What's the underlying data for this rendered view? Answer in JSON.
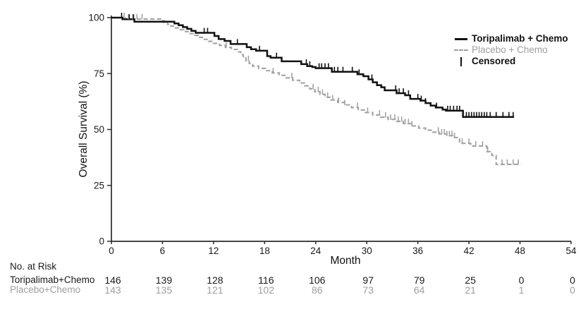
{
  "chart_data": {
    "type": "line",
    "subtype": "kaplan-meier-step",
    "title": "",
    "xlabel": "Month",
    "ylabel": "Overall Survival (%)",
    "xlim": [
      0,
      54
    ],
    "ylim": [
      0,
      100
    ],
    "x_ticks": [
      0,
      6,
      12,
      18,
      24,
      30,
      36,
      42,
      48,
      54
    ],
    "y_ticks": [
      0,
      25,
      50,
      75,
      100
    ],
    "grid": false,
    "legend_position": "top-right",
    "legend": [
      {
        "label": "Toripalimab + Chemo",
        "style": "solid",
        "color": "#111111"
      },
      {
        "label": "Placebo + Chemo",
        "style": "dashed",
        "color": "#a0a0a0"
      },
      {
        "label": "Censored",
        "style": "tick",
        "color": "#111111"
      }
    ],
    "axis_color": "#2b2b2b",
    "series": [
      {
        "name": "Toripalimab + Chemo",
        "color": "#111111",
        "line_style": "solid",
        "end_month": 47.3,
        "points": [
          [
            0,
            100
          ],
          [
            1.3,
            99.3
          ],
          [
            2.7,
            98.2
          ],
          [
            7.4,
            97.4
          ],
          [
            7.9,
            96.6
          ],
          [
            8.4,
            95.8
          ],
          [
            8.9,
            95.0
          ],
          [
            9.4,
            94.1
          ],
          [
            9.9,
            93.2
          ],
          [
            12.1,
            91.8
          ],
          [
            12.6,
            90.4
          ],
          [
            13.3,
            89.6
          ],
          [
            14.0,
            88.2
          ],
          [
            15.9,
            86.8
          ],
          [
            16.4,
            85.9
          ],
          [
            17.0,
            85.2
          ],
          [
            18.3,
            82.8
          ],
          [
            18.7,
            82.1
          ],
          [
            20.0,
            80.5
          ],
          [
            22.3,
            79.2
          ],
          [
            23.0,
            78.3
          ],
          [
            23.6,
            77.9
          ],
          [
            24.0,
            77.4
          ],
          [
            25.9,
            75.8
          ],
          [
            28.9,
            74.7
          ],
          [
            29.6,
            73.8
          ],
          [
            30.2,
            72.4
          ],
          [
            30.7,
            71.1
          ],
          [
            31.2,
            69.8
          ],
          [
            31.7,
            68.9
          ],
          [
            32.1,
            67.5
          ],
          [
            33.5,
            66.2
          ],
          [
            34.5,
            65.3
          ],
          [
            35.1,
            63.7
          ],
          [
            36.3,
            62.9
          ],
          [
            36.9,
            61.8
          ],
          [
            37.5,
            60.7
          ],
          [
            38.1,
            59.8
          ],
          [
            38.9,
            58.9
          ],
          [
            39.3,
            58.4
          ],
          [
            41.3,
            55.6
          ]
        ],
        "censor_months": [
          1.2,
          2.1,
          2.6,
          10.9,
          11.3,
          14.8,
          17.4,
          19.4,
          22.9,
          23.3,
          24.4,
          24.7,
          25.1,
          25.5,
          26.2,
          26.6,
          27.2,
          28.3,
          29.1,
          30.6,
          33.4,
          33.8,
          34.3,
          34.9,
          36.0,
          36.4,
          36.9,
          38.2,
          39.5,
          39.8,
          40.2,
          40.6,
          40.9,
          41.7,
          42.0,
          42.3,
          42.6,
          42.9,
          43.2,
          43.5,
          43.8,
          44.1,
          44.5,
          45.2,
          46.0,
          46.7,
          47.2
        ]
      },
      {
        "name": "Placebo + Chemo",
        "color": "#a3a3a3",
        "line_style": "dashed",
        "end_month": 48.1,
        "points": [
          [
            0,
            100
          ],
          [
            1.6,
            99.4
          ],
          [
            5.8,
            98.6
          ],
          [
            6.2,
            97.8
          ],
          [
            6.6,
            97.0
          ],
          [
            7.0,
            96.2
          ],
          [
            7.5,
            95.4
          ],
          [
            8.0,
            94.6
          ],
          [
            8.5,
            93.8
          ],
          [
            9.0,
            92.9
          ],
          [
            9.6,
            92.1
          ],
          [
            10.2,
            91.2
          ],
          [
            10.8,
            90.3
          ],
          [
            11.4,
            89.4
          ],
          [
            12.0,
            88.5
          ],
          [
            12.7,
            87.6
          ],
          [
            13.4,
            86.7
          ],
          [
            14.1,
            85.8
          ],
          [
            14.8,
            84.7
          ],
          [
            15.2,
            83.4
          ],
          [
            15.5,
            82.1
          ],
          [
            15.8,
            80.8
          ],
          [
            16.2,
            79.5
          ],
          [
            16.6,
            78.3
          ],
          [
            17.3,
            77.3
          ],
          [
            18.1,
            76.3
          ],
          [
            18.9,
            75.3
          ],
          [
            19.7,
            74.2
          ],
          [
            20.5,
            73.1
          ],
          [
            21.3,
            72.0
          ],
          [
            22.1,
            70.8
          ],
          [
            22.7,
            69.5
          ],
          [
            23.3,
            68.2
          ],
          [
            23.9,
            66.9
          ],
          [
            24.5,
            65.7
          ],
          [
            25.1,
            64.4
          ],
          [
            25.8,
            63.2
          ],
          [
            26.6,
            62.1
          ],
          [
            27.4,
            61.0
          ],
          [
            28.2,
            59.8
          ],
          [
            29.0,
            58.7
          ],
          [
            29.8,
            57.6
          ],
          [
            30.7,
            56.5
          ],
          [
            31.6,
            55.5
          ],
          [
            32.5,
            54.5
          ],
          [
            33.4,
            53.6
          ],
          [
            34.3,
            52.6
          ],
          [
            35.2,
            51.6
          ],
          [
            36.1,
            50.6
          ],
          [
            36.9,
            49.7
          ],
          [
            37.7,
            48.8
          ],
          [
            38.5,
            48.0
          ],
          [
            39.4,
            47.2
          ],
          [
            40.1,
            46.4
          ],
          [
            40.9,
            43.8
          ],
          [
            42.2,
            42.6
          ],
          [
            44.1,
            40.1
          ],
          [
            44.7,
            38.4
          ],
          [
            45.2,
            34.4
          ]
        ],
        "censor_months": [
          1.5,
          2.0,
          2.5,
          3.0,
          3.6,
          13.5,
          16.1,
          19.0,
          21.2,
          23.7,
          24.3,
          24.8,
          25.4,
          26.0,
          26.7,
          27.4,
          28.9,
          30.1,
          31.5,
          32.2,
          32.8,
          33.3,
          33.7,
          34.1,
          34.5,
          34.9,
          35.3,
          38.4,
          38.8,
          39.1,
          39.4,
          39.7,
          40.0,
          40.3,
          41.2,
          42.0,
          42.8,
          43.6,
          44.2,
          45.9,
          46.5,
          47.2,
          47.8
        ]
      }
    ]
  },
  "risk_table": {
    "title": "No. at Risk",
    "timepoints": [
      0,
      6,
      12,
      18,
      24,
      30,
      36,
      42,
      48,
      54
    ],
    "rows": [
      {
        "label": "Toripalimab+Chemo",
        "color": "#1a1a1a",
        "values": [
          146,
          139,
          128,
          116,
          106,
          97,
          79,
          25,
          0,
          0
        ]
      },
      {
        "label": "Placebo+Chemo",
        "color": "#9e9e9e",
        "values": [
          143,
          135,
          121,
          102,
          86,
          73,
          64,
          21,
          1,
          0
        ]
      }
    ]
  }
}
